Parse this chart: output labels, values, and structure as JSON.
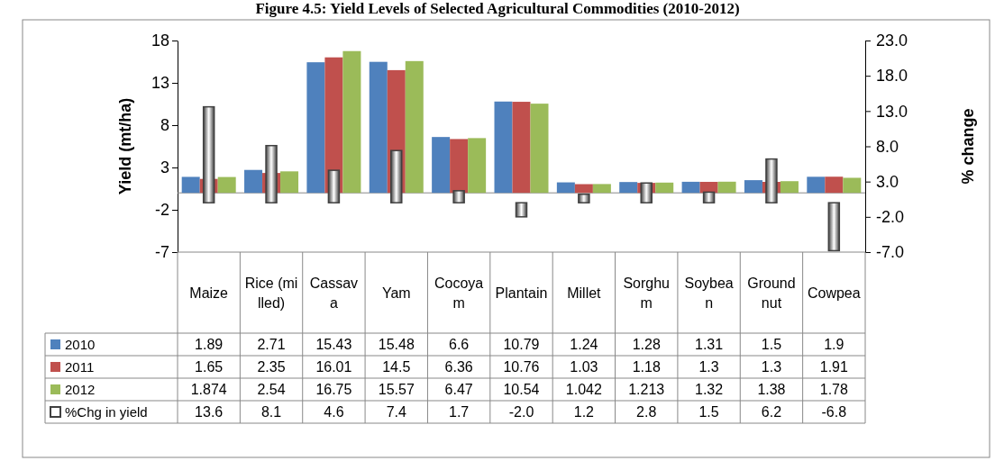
{
  "chart_data": {
    "type": "bar",
    "title": "Figure 4.5: Yield Levels of Selected Agricultural Commodities (2010-2012)",
    "ylabel": "Yield (mt/ha)",
    "y2label": "% change",
    "categories": [
      "Maize",
      "Rice (milled)",
      "Cassava",
      "Yam",
      "Cocoyam",
      "Plantain",
      "Millet",
      "Sorghum",
      "Soybean",
      "Groundnut",
      "Cowpea"
    ],
    "series": [
      {
        "name": "2010",
        "color": "#4f81bd",
        "values": [
          1.89,
          2.71,
          15.43,
          15.48,
          6.6,
          10.79,
          1.24,
          1.28,
          1.31,
          1.5,
          1.9
        ],
        "value_labels": [
          "1.89",
          "2.71",
          "15.43",
          "15.48",
          "6.6",
          "10.79",
          "1.24",
          "1.28",
          "1.31",
          "1.5",
          "1.9"
        ]
      },
      {
        "name": "2011",
        "color": "#c0504d",
        "values": [
          1.65,
          2.35,
          16.01,
          14.5,
          6.36,
          10.76,
          1.03,
          1.18,
          1.3,
          1.3,
          1.91
        ],
        "value_labels": [
          "1.65",
          "2.35",
          "16.01",
          "14.5",
          "6.36",
          "10.76",
          "1.03",
          "1.18",
          "1.3",
          "1.3",
          "1.91"
        ]
      },
      {
        "name": "2012",
        "color": "#9bbb59",
        "values": [
          1.874,
          2.54,
          16.75,
          15.57,
          6.47,
          10.54,
          1.042,
          1.213,
          1.32,
          1.38,
          1.78
        ],
        "value_labels": [
          "1.874",
          "2.54",
          "16.75",
          "15.57",
          "6.47",
          "10.54",
          "1.042",
          "1.213",
          "1.32",
          "1.38",
          "1.78"
        ]
      },
      {
        "name": "%Chg in yield",
        "color": "#404040",
        "axis": "y2",
        "values": [
          13.6,
          8.1,
          4.6,
          7.4,
          1.7,
          -2.0,
          1.2,
          2.8,
          1.5,
          6.2,
          -6.8
        ],
        "value_labels": [
          "13.6",
          "8.1",
          "4.6",
          "7.4",
          "1.7",
          "-2.0",
          "1.2",
          "2.8",
          "1.5",
          "6.2",
          "-6.8"
        ]
      }
    ],
    "ylim": [
      -7,
      18
    ],
    "yticks": [
      -7,
      -2,
      3,
      8,
      13,
      18
    ],
    "y2lim": [
      -7,
      23
    ],
    "y2ticks": [
      {
        "value": -7,
        "label": "-7.0"
      },
      {
        "value": -2,
        "label": "-2.0"
      },
      {
        "value": 3,
        "label": "3.0"
      },
      {
        "value": 8,
        "label": "8.0"
      },
      {
        "value": 13,
        "label": "13.0"
      },
      {
        "value": 18,
        "label": "18.0"
      },
      {
        "value": 23,
        "label": "23.0"
      }
    ],
    "legend": "bottom",
    "grid": false
  }
}
